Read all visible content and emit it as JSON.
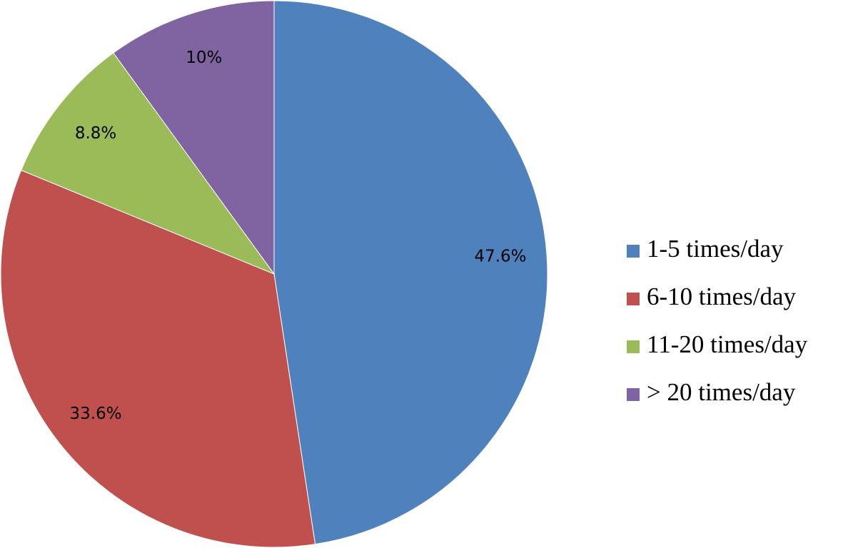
{
  "chart_data": {
    "type": "pie",
    "categories": [
      "1-5 times/day",
      "6-10 times/day",
      "11-20 times/day",
      "> 20 times/day"
    ],
    "values": [
      47.6,
      33.6,
      8.8,
      10
    ],
    "value_labels": [
      "47.6%",
      "33.6%",
      "8.8%",
      "10%"
    ],
    "colors": [
      "#4f81bd",
      "#c0504d",
      "#9bbb59",
      "#8064a2"
    ],
    "legend": "right"
  }
}
